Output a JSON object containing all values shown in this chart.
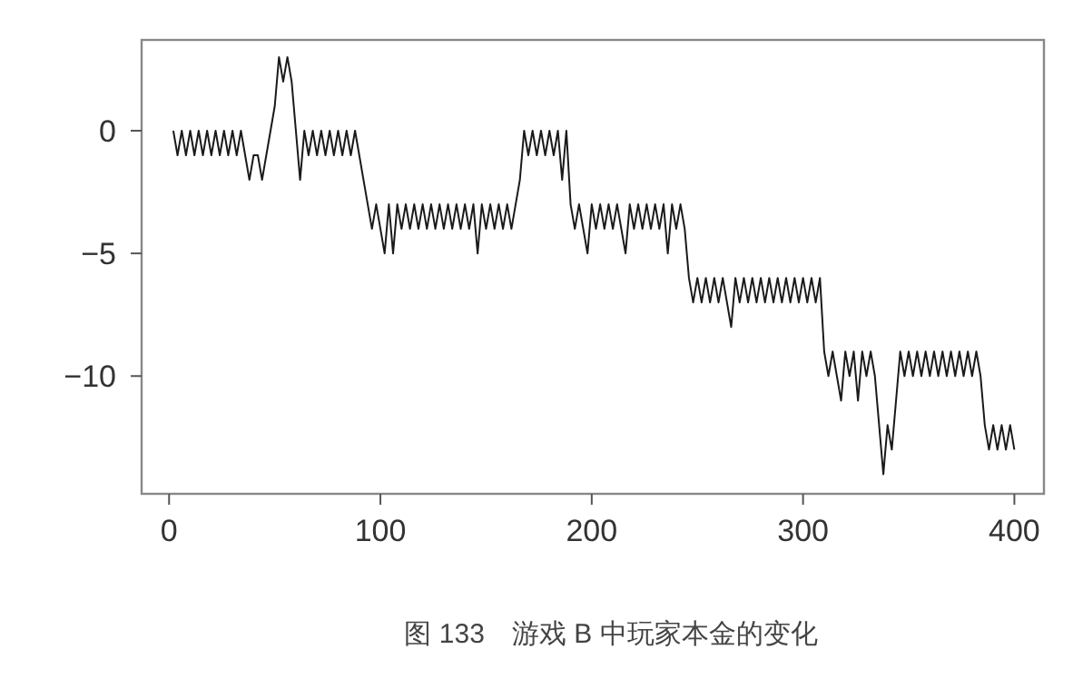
{
  "chart_data": {
    "type": "line",
    "title": "图 133　游戏 B 中玩家本金的变化",
    "xlim": [
      -13,
      414
    ],
    "xticks": [
      0,
      100,
      200,
      300,
      400
    ],
    "ylim": [
      -14.8,
      3.7
    ],
    "yticks": [
      {
        "value": 0,
        "label": "0"
      },
      {
        "value": -5,
        "label": "−5"
      },
      {
        "value": -10,
        "label": "−10"
      }
    ],
    "grid": false,
    "marker": "none",
    "line_style": "solid",
    "series": [
      {
        "color": "#1a1a1a",
        "x": [
          2,
          4,
          6,
          8,
          10,
          12,
          14,
          16,
          18,
          20,
          22,
          24,
          26,
          28,
          30,
          32,
          34,
          36,
          38,
          40,
          42,
          44,
          46,
          48,
          50,
          52,
          54,
          56,
          58,
          60,
          62,
          64,
          66,
          68,
          70,
          72,
          74,
          76,
          78,
          80,
          82,
          84,
          86,
          88,
          90,
          92,
          94,
          96,
          98,
          100,
          102,
          104,
          106,
          108,
          110,
          112,
          114,
          116,
          118,
          120,
          122,
          124,
          126,
          128,
          130,
          132,
          134,
          136,
          138,
          140,
          142,
          144,
          146,
          148,
          150,
          152,
          154,
          156,
          158,
          160,
          162,
          164,
          166,
          168,
          170,
          172,
          174,
          176,
          178,
          180,
          182,
          184,
          186,
          188,
          190,
          192,
          194,
          196,
          198,
          200,
          202,
          204,
          206,
          208,
          210,
          212,
          214,
          216,
          218,
          220,
          222,
          224,
          226,
          228,
          230,
          232,
          234,
          236,
          238,
          240,
          242,
          244,
          246,
          248,
          250,
          252,
          254,
          256,
          258,
          260,
          262,
          264,
          266,
          268,
          270,
          272,
          274,
          276,
          278,
          280,
          282,
          284,
          286,
          288,
          290,
          292,
          294,
          296,
          298,
          300,
          302,
          304,
          306,
          308,
          310,
          312,
          314,
          316,
          318,
          320,
          322,
          324,
          326,
          328,
          330,
          332,
          334,
          336,
          338,
          340,
          342,
          344,
          346,
          348,
          350,
          352,
          354,
          356,
          358,
          360,
          362,
          364,
          366,
          368,
          370,
          372,
          374,
          376,
          378,
          380,
          382,
          384,
          386,
          388,
          390,
          392,
          394,
          396,
          398,
          400
        ],
        "values": [
          0,
          -1,
          0,
          -1,
          0,
          -1,
          0,
          -1,
          0,
          -1,
          0,
          -1,
          0,
          -1,
          0,
          -1,
          0,
          -1,
          -2,
          -1,
          -1,
          -2,
          -1,
          0,
          1,
          3,
          2,
          3,
          2,
          0,
          -2,
          0,
          -1,
          0,
          -1,
          0,
          -1,
          0,
          -1,
          0,
          -1,
          0,
          -1,
          0,
          -1,
          -2,
          -3,
          -4,
          -3,
          -4,
          -5,
          -3,
          -5,
          -3,
          -4,
          -3,
          -4,
          -3,
          -4,
          -3,
          -4,
          -3,
          -4,
          -3,
          -4,
          -3,
          -4,
          -3,
          -4,
          -3,
          -4,
          -3,
          -5,
          -3,
          -4,
          -3,
          -4,
          -3,
          -4,
          -3,
          -4,
          -3,
          -2,
          0,
          -1,
          0,
          -1,
          0,
          -1,
          0,
          -1,
          0,
          -2,
          0,
          -3,
          -4,
          -3,
          -4,
          -5,
          -3,
          -4,
          -3,
          -4,
          -3,
          -4,
          -3,
          -4,
          -5,
          -3,
          -4,
          -3,
          -4,
          -3,
          -4,
          -3,
          -4,
          -3,
          -5,
          -3,
          -4,
          -3,
          -4,
          -6,
          -7,
          -6,
          -7,
          -6,
          -7,
          -6,
          -7,
          -6,
          -7,
          -8,
          -6,
          -7,
          -6,
          -7,
          -6,
          -7,
          -6,
          -7,
          -6,
          -7,
          -6,
          -7,
          -6,
          -7,
          -6,
          -7,
          -6,
          -7,
          -6,
          -7,
          -6,
          -9,
          -10,
          -9,
          -10,
          -11,
          -9,
          -10,
          -9,
          -11,
          -9,
          -10,
          -9,
          -10,
          -12,
          -14,
          -12,
          -13,
          -11,
          -9,
          -10,
          -9,
          -10,
          -9,
          -10,
          -9,
          -10,
          -9,
          -10,
          -9,
          -10,
          -9,
          -10,
          -9,
          -10,
          -9,
          -10,
          -9,
          -10,
          -12,
          -13,
          -12,
          -13,
          -12,
          -13,
          -12,
          -13
        ]
      }
    ]
  }
}
